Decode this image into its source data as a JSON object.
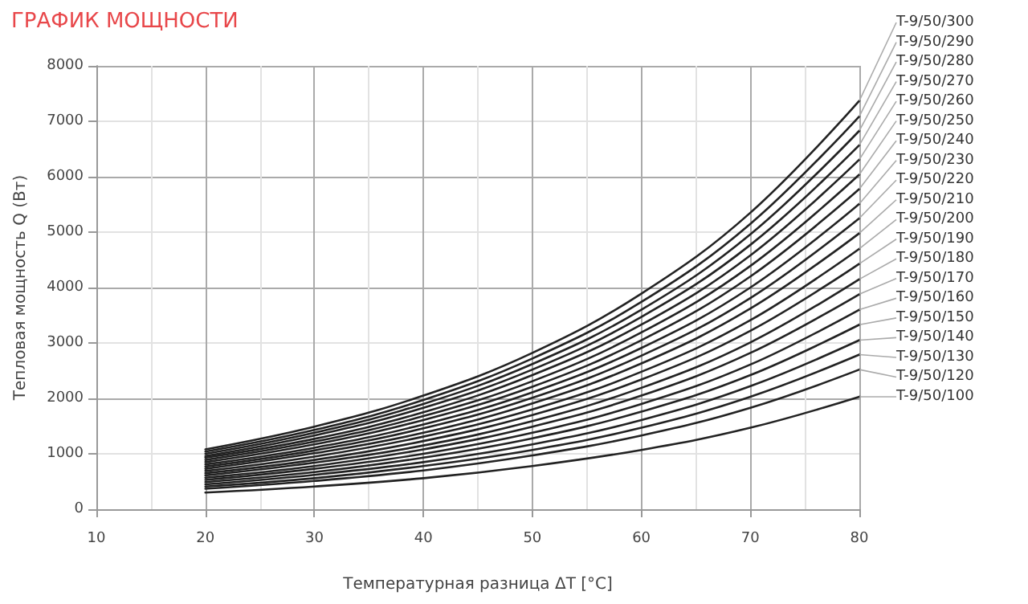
{
  "chart_data": {
    "type": "line",
    "title": "ГРАФИК МОЩНОСТИ",
    "xlabel": "Температурная разница ΔT [°C]",
    "ylabel": "Тепловая мощность Q (Вт)",
    "x": [
      20,
      30,
      40,
      50,
      60,
      70,
      80
    ],
    "xlim": [
      10,
      80
    ],
    "xticks": [
      10,
      20,
      30,
      40,
      50,
      60,
      70,
      80
    ],
    "ylim": [
      0,
      8000
    ],
    "yticks": [
      0,
      1000,
      2000,
      3000,
      4000,
      5000,
      6000,
      7000,
      8000
    ],
    "grid": true,
    "marker": "none",
    "line_style": "solid",
    "legend": "right",
    "series": [
      {
        "name": "T-9/50/300",
        "color": "#222222",
        "values": [
          1080,
          1490,
          2050,
          2820,
          3890,
          5350,
          7370
        ]
      },
      {
        "name": "T-9/50/290",
        "color": "#222222",
        "values": [
          1040,
          1430,
          1970,
          2720,
          3740,
          5150,
          7090
        ]
      },
      {
        "name": "T-9/50/280",
        "color": "#222222",
        "values": [
          1000,
          1380,
          1900,
          2620,
          3600,
          4960,
          6830
        ]
      },
      {
        "name": "T-9/50/270",
        "color": "#222222",
        "values": [
          960,
          1330,
          1830,
          2520,
          3470,
          4770,
          6570
        ]
      },
      {
        "name": "T-9/50/260",
        "color": "#222222",
        "values": [
          930,
          1270,
          1750,
          2420,
          3330,
          4580,
          6310
        ]
      },
      {
        "name": "T-9/50/250",
        "color": "#222222",
        "values": [
          890,
          1220,
          1680,
          2310,
          3190,
          4390,
          6040
        ]
      },
      {
        "name": "T-9/50/240",
        "color": "#222222",
        "values": [
          850,
          1170,
          1610,
          2210,
          3050,
          4200,
          5780
        ]
      },
      {
        "name": "T-9/50/230",
        "color": "#222222",
        "values": [
          810,
          1110,
          1530,
          2110,
          2910,
          4000,
          5510
        ]
      },
      {
        "name": "T-9/50/220",
        "color": "#222222",
        "values": [
          770,
          1060,
          1460,
          2010,
          2770,
          3810,
          5250
        ]
      },
      {
        "name": "T-9/50/210",
        "color": "#222222",
        "values": [
          730,
          1010,
          1380,
          1910,
          2630,
          3620,
          4980
        ]
      },
      {
        "name": "T-9/50/200",
        "color": "#222222",
        "values": [
          690,
          950,
          1310,
          1800,
          2480,
          3410,
          4700
        ]
      },
      {
        "name": "T-9/50/190",
        "color": "#222222",
        "values": [
          650,
          890,
          1230,
          1700,
          2340,
          3220,
          4430
        ]
      },
      {
        "name": "T-9/50/180",
        "color": "#222222",
        "values": [
          610,
          840,
          1150,
          1590,
          2190,
          3010,
          4150
        ]
      },
      {
        "name": "T-9/50/170",
        "color": "#222222",
        "values": [
          570,
          780,
          1080,
          1490,
          2050,
          2820,
          3880
        ]
      },
      {
        "name": "T-9/50/160",
        "color": "#222222",
        "values": [
          530,
          730,
          1000,
          1380,
          1900,
          2610,
          3600
        ]
      },
      {
        "name": "T-9/50/150",
        "color": "#222222",
        "values": [
          490,
          670,
          930,
          1280,
          1760,
          2420,
          3330
        ]
      },
      {
        "name": "T-9/50/140",
        "color": "#222222",
        "values": [
          450,
          620,
          850,
          1170,
          1610,
          2220,
          3050
        ]
      },
      {
        "name": "T-9/50/130",
        "color": "#222222",
        "values": [
          410,
          560,
          780,
          1070,
          1470,
          2030,
          2790
        ]
      },
      {
        "name": "T-9/50/120",
        "color": "#222222",
        "values": [
          370,
          510,
          700,
          970,
          1330,
          1830,
          2520
        ]
      },
      {
        "name": "T-9/50/100",
        "color": "#222222",
        "values": [
          300,
          410,
          560,
          780,
          1070,
          1470,
          2030
        ]
      }
    ]
  }
}
